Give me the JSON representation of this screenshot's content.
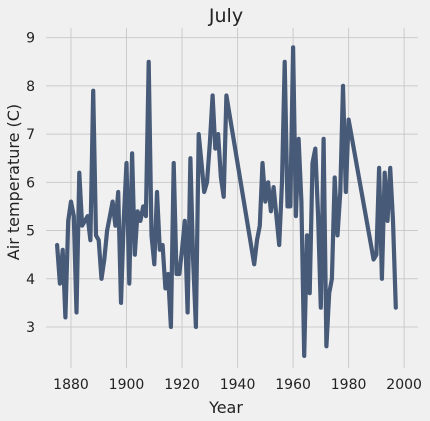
{
  "chart_data": {
    "type": "line",
    "title": "July",
    "xlabel": "Year",
    "ylabel": "Air temperature (C)",
    "xlim": [
      1871,
      2005
    ],
    "ylim": [
      2.15,
      9.2
    ],
    "xticks": [
      1880,
      1900,
      1920,
      1940,
      1960,
      1980,
      2000
    ],
    "yticks": [
      3,
      4,
      5,
      6,
      7,
      8,
      9
    ],
    "grid": true,
    "colors": {
      "background": "#f0f0f0",
      "grid": "#cbcbcb",
      "line": "#475a78",
      "text": "#222222"
    },
    "series": [
      {
        "x": [
          1875,
          1876,
          1877,
          1878,
          1879,
          1880,
          1881,
          1882,
          1883,
          1884,
          1885,
          1886,
          1887,
          1888,
          1889,
          1890,
          1891,
          1892,
          1893,
          1894,
          1895,
          1896,
          1897,
          1898,
          1899,
          1900,
          1901,
          1902,
          1903,
          1904,
          1905,
          1906,
          1907,
          1908,
          1909,
          1910,
          1911,
          1912,
          1913,
          1914,
          1915,
          1916,
          1917,
          1918,
          1919,
          1920,
          1921,
          1922,
          1923,
          1924,
          1925,
          1926,
          1927,
          1928,
          1929,
          1930,
          1931,
          1932,
          1933,
          1934,
          1935,
          1936,
          1946,
          1947,
          1948,
          1949,
          1950,
          1951,
          1952,
          1953,
          1954,
          1955,
          1956,
          1957,
          1958,
          1959,
          1960,
          1961,
          1962,
          1963,
          1964,
          1965,
          1966,
          1967,
          1968,
          1969,
          1970,
          1971,
          1972,
          1973,
          1974,
          1975,
          1976,
          1977,
          1978,
          1979,
          1980,
          1989,
          1990,
          1991,
          1992,
          1993,
          1994,
          1995,
          1996,
          1997
        ],
        "values": [
          4.7,
          3.9,
          4.6,
          3.2,
          5.2,
          5.6,
          5.3,
          3.3,
          6.2,
          5.1,
          5.2,
          5.3,
          4.8,
          7.9,
          4.9,
          4.8,
          4.0,
          4.4,
          5.0,
          5.3,
          5.6,
          5.1,
          5.8,
          3.5,
          5.2,
          6.4,
          3.9,
          6.6,
          4.5,
          5.4,
          5.2,
          5.5,
          5.3,
          8.5,
          4.9,
          4.3,
          5.8,
          4.6,
          4.7,
          3.8,
          4.1,
          3.0,
          6.4,
          4.1,
          4.1,
          4.6,
          5.2,
          3.3,
          6.5,
          4.4,
          3.0,
          7.0,
          6.4,
          5.8,
          6.0,
          6.8,
          7.8,
          6.7,
          7.0,
          6.1,
          5.7,
          7.8,
          4.3,
          4.8,
          5.1,
          6.4,
          5.6,
          6.0,
          5.4,
          5.9,
          5.3,
          4.7,
          6.0,
          8.5,
          5.5,
          5.5,
          8.8,
          5.3,
          6.9,
          5.6,
          2.4,
          4.9,
          3.7,
          6.4,
          6.7,
          5.3,
          3.4,
          6.9,
          2.6,
          3.7,
          4.0,
          6.1,
          4.9,
          5.8,
          8.0,
          5.8,
          7.3,
          4.4,
          4.5,
          6.3,
          4.0,
          6.2,
          5.2,
          6.3,
          5.2,
          3.4
        ]
      }
    ]
  }
}
